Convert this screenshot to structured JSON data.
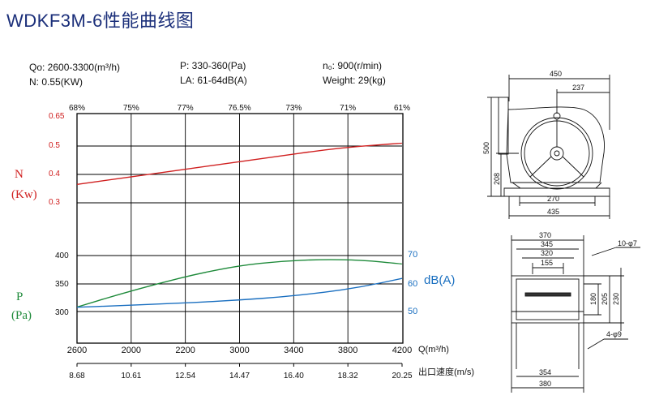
{
  "title": "WDKF3M-6性能曲线图",
  "specs": {
    "qo": "Qo: 2600-3300(m³/h)",
    "n": "N: 0.55(KW)",
    "p": "P: 330-360(Pa)",
    "la": "LA: 61-64dB(A)",
    "no": "n₀: 900(r/min)",
    "weight": "Weight: 29(kg)"
  },
  "chart_data": {
    "type": "line",
    "title": "WDKF3M-6性能曲线图",
    "xlabel": "Q(m³/h)",
    "x_ticks": [
      "2600",
      "2000",
      "2200",
      "3000",
      "3400",
      "3800",
      "4200"
    ],
    "x_values": [
      2600,
      2000,
      2200,
      3000,
      3400,
      3800,
      4200
    ],
    "velocity_label": "出口速度(m/s)",
    "velocity_ticks": [
      "8.68",
      "10.61",
      "12.54",
      "14.47",
      "16.40",
      "18.32",
      "20.25"
    ],
    "efficiency_ticks": [
      "68%",
      "75%",
      "77%",
      "76.5%",
      "73%",
      "71%",
      "61%"
    ],
    "n_axis": {
      "label_top": "N",
      "label_bottom": "(Kw)",
      "ticks": [
        "0.65",
        "0.5",
        "0.4",
        "0.3"
      ],
      "color": "#d02020"
    },
    "p_axis": {
      "label_top": "P",
      "label_bottom": "(Pa)",
      "ticks": [
        "400",
        "350",
        "300"
      ],
      "color": "#1e8a3a"
    },
    "db_axis": {
      "label": "dB(A)",
      "ticks": [
        "70",
        "60",
        "50"
      ],
      "color": "#1a6fc0"
    },
    "series": [
      {
        "name": "N",
        "color": "#d02020",
        "x": [
          2600,
          2800,
          3000,
          3200,
          3400,
          3600,
          3800,
          4000,
          4200
        ],
        "y": [
          0.365,
          0.385,
          0.405,
          0.425,
          0.445,
          0.465,
          0.485,
          0.5,
          0.51
        ]
      },
      {
        "name": "P",
        "color": "#1e8a3a",
        "x": [
          2600,
          2800,
          3000,
          3200,
          3400,
          3600,
          3800,
          4000,
          4200
        ],
        "y": [
          308,
          330,
          350,
          368,
          382,
          390,
          393,
          392,
          385
        ]
      },
      {
        "name": "dB(A)",
        "color": "#1a6fc0",
        "x": [
          2600,
          2800,
          3000,
          3200,
          3400,
          3600,
          3800,
          4000,
          4200
        ],
        "y": [
          51.5,
          52.0,
          52.6,
          53.2,
          54.0,
          55.0,
          56.5,
          58.5,
          61.5
        ]
      }
    ],
    "grid": true
  },
  "dimensions": {
    "front": {
      "w450": "450",
      "w237": "237",
      "h500": "500",
      "h208": "208",
      "w270": "270",
      "w435": "435"
    },
    "bottom": {
      "w370": "370",
      "w345": "345",
      "w320": "320",
      "w155": "155",
      "h180": "180",
      "h205": "205",
      "h230": "230",
      "w354": "354",
      "w380": "380",
      "holes_top": "10-φ7",
      "holes_bottom": "4-φ9"
    }
  },
  "colors": {
    "title": "#1b2f7a",
    "n_curve": "#d02020",
    "p_curve": "#1e8a3a",
    "db_curve": "#1a6fc0"
  }
}
